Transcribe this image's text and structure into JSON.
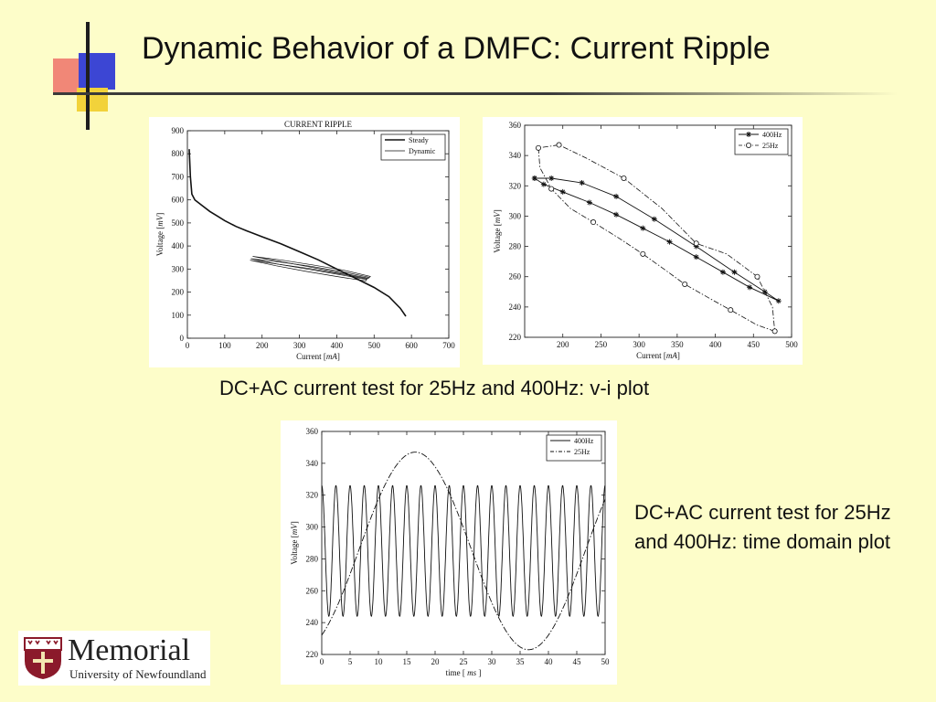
{
  "slide": {
    "title": "Dynamic Behavior of a DMFC: Current Ripple",
    "caption_vi": "DC+AC current test for 25Hz and 400Hz: v-i plot",
    "caption_time": "DC+AC current test for 25Hz and 400Hz: time domain plot"
  },
  "logo": {
    "name": "Memorial",
    "subtitle": "University of Newfoundland",
    "icon": "crest-icon"
  },
  "colors": {
    "background": "#fdfdc9",
    "deco_red": "#f07a6e",
    "deco_blue": "#3c46d4",
    "deco_yellow": "#f2d23a",
    "crest": "#8b1a2b"
  },
  "chart_data": [
    {
      "type": "line",
      "title": "CURRENT RIPPLE",
      "xlabel": "Current [mA]",
      "ylabel": "Voltage [mV]",
      "xlim": [
        0,
        700
      ],
      "ylim": [
        0,
        900
      ],
      "xticks": [
        "0",
        "100",
        "200",
        "300",
        "400",
        "500",
        "600",
        "700"
      ],
      "yticks": [
        "0",
        "100",
        "200",
        "300",
        "400",
        "500",
        "600",
        "700",
        "800",
        "900"
      ],
      "legend": "top-right",
      "grid": false,
      "series": [
        {
          "name": "Steady",
          "style": "thick",
          "x": [
            5,
            8,
            12,
            20,
            40,
            60,
            80,
            100,
            130,
            160,
            200,
            250,
            300,
            350,
            400,
            450,
            500,
            540,
            570,
            585
          ],
          "y": [
            820,
            700,
            625,
            600,
            575,
            550,
            530,
            510,
            485,
            465,
            440,
            410,
            375,
            340,
            300,
            260,
            220,
            180,
            130,
            95
          ]
        },
        {
          "name": "Dynamic",
          "style": "thin",
          "loops": [
            {
              "x": [
                170,
                250,
                330,
                410,
                485,
                480,
                400,
                320,
                240,
                170
              ],
              "y": [
                345,
                330,
                312,
                290,
                265,
                255,
                278,
                300,
                322,
                345
              ]
            },
            {
              "x": [
                175,
                255,
                335,
                415,
                490,
                485,
                405,
                325,
                245,
                175
              ],
              "y": [
                355,
                338,
                318,
                296,
                268,
                260,
                285,
                310,
                334,
                355
              ]
            },
            {
              "x": [
                168,
                248,
                328,
                408,
                480,
                478,
                398,
                318,
                238,
                168
              ],
              "y": [
                338,
                320,
                302,
                280,
                258,
                248,
                268,
                290,
                314,
                338
              ]
            }
          ]
        }
      ]
    },
    {
      "type": "line",
      "title": "",
      "xlabel": "Current [mA]",
      "ylabel": "Voltage [mV]",
      "xlim": [
        150,
        500
      ],
      "ylim": [
        220,
        360
      ],
      "xticks": [
        "200",
        "250",
        "300",
        "350",
        "400",
        "450",
        "500"
      ],
      "yticks": [
        "220",
        "240",
        "260",
        "280",
        "300",
        "320",
        "340",
        "360"
      ],
      "legend": "top-right",
      "grid": false,
      "series": [
        {
          "name": "400Hz",
          "style": "solid",
          "marker": "star",
          "x": [
            163,
            175,
            200,
            235,
            270,
            305,
            340,
            375,
            410,
            445,
            483,
            465,
            425,
            375,
            320,
            270,
            225,
            185,
            163
          ],
          "y": [
            325,
            321,
            316,
            309,
            301,
            292,
            283,
            273,
            263,
            253,
            244,
            250,
            263,
            280,
            298,
            313,
            322,
            325,
            325
          ]
        },
        {
          "name": "25Hz",
          "style": "dashdot",
          "marker": "circle",
          "x": [
            168,
            170,
            185,
            210,
            240,
            275,
            305,
            330,
            360,
            395,
            420,
            455,
            478,
            475,
            455,
            415,
            375,
            330,
            280,
            232,
            195,
            168
          ],
          "y": [
            345,
            332,
            318,
            305,
            296,
            285,
            275,
            266,
            255,
            245,
            238,
            228,
            224,
            240,
            260,
            275,
            282,
            305,
            325,
            338,
            347,
            345
          ]
        }
      ]
    },
    {
      "type": "line",
      "title": "",
      "xlabel": "time [ ms ]",
      "ylabel": "Voltage [mV]",
      "xlim": [
        0,
        50
      ],
      "ylim": [
        220,
        360
      ],
      "xticks": [
        "0",
        "5",
        "10",
        "15",
        "20",
        "25",
        "30",
        "35",
        "40",
        "45",
        "50"
      ],
      "yticks": [
        "220",
        "240",
        "260",
        "280",
        "300",
        "320",
        "340",
        "360"
      ],
      "legend": "top-right",
      "grid": false,
      "series": [
        {
          "name": "400Hz",
          "style": "solid",
          "amplitude": 41,
          "offset": 285,
          "frequency_hz": 400
        },
        {
          "name": "25Hz",
          "style": "dashdot",
          "amplitude": 62,
          "offset": 285,
          "frequency_hz": 25
        }
      ]
    }
  ]
}
